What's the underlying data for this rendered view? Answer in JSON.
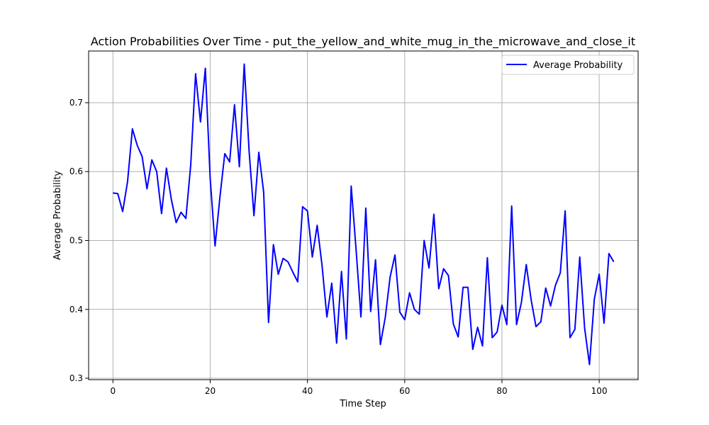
{
  "chart_data": {
    "type": "line",
    "title": "Action Probabilities Over Time - put_the_yellow_and_white_mug_in_the_microwave_and_close_it",
    "xlabel": "Time Step",
    "ylabel": "Average Probability",
    "xlim": [
      -5,
      108
    ],
    "ylim": [
      0.298,
      0.775
    ],
    "xticks": [
      0,
      20,
      40,
      60,
      80,
      100
    ],
    "yticks": [
      0.3,
      0.4,
      0.5,
      0.6,
      0.7
    ],
    "ytick_labels": [
      "0.3",
      "0.4",
      "0.5",
      "0.6",
      "0.7"
    ],
    "grid": true,
    "legend_position": "top-right",
    "series": [
      {
        "name": "Average Probability",
        "color": "#0000ff",
        "x": [
          0,
          1,
          2,
          3,
          4,
          5,
          6,
          7,
          8,
          9,
          10,
          11,
          12,
          13,
          14,
          15,
          16,
          17,
          18,
          19,
          20,
          21,
          22,
          23,
          24,
          25,
          26,
          27,
          28,
          29,
          30,
          31,
          32,
          33,
          34,
          35,
          36,
          37,
          38,
          39,
          40,
          41,
          42,
          43,
          44,
          45,
          46,
          47,
          48,
          49,
          50,
          51,
          52,
          53,
          54,
          55,
          56,
          57,
          58,
          59,
          60,
          61,
          62,
          63,
          64,
          65,
          66,
          67,
          68,
          69,
          70,
          71,
          72,
          73,
          74,
          75,
          76,
          77,
          78,
          79,
          80,
          81,
          82,
          83,
          84,
          85,
          86,
          87,
          88,
          89,
          90,
          91,
          92,
          93,
          94,
          95,
          96,
          97,
          98,
          99,
          100,
          101,
          102,
          103
        ],
        "values": [
          0.569,
          0.568,
          0.542,
          0.585,
          0.662,
          0.638,
          0.622,
          0.575,
          0.617,
          0.6,
          0.539,
          0.605,
          0.56,
          0.526,
          0.541,
          0.532,
          0.61,
          0.742,
          0.672,
          0.75,
          0.59,
          0.492,
          0.563,
          0.626,
          0.614,
          0.697,
          0.607,
          0.756,
          0.63,
          0.536,
          0.628,
          0.57,
          0.381,
          0.494,
          0.451,
          0.474,
          0.469,
          0.454,
          0.44,
          0.549,
          0.543,
          0.476,
          0.522,
          0.464,
          0.389,
          0.438,
          0.351,
          0.455,
          0.357,
          0.579,
          0.487,
          0.389,
          0.547,
          0.397,
          0.472,
          0.349,
          0.388,
          0.447,
          0.479,
          0.396,
          0.385,
          0.424,
          0.4,
          0.393,
          0.5,
          0.46,
          0.538,
          0.43,
          0.459,
          0.449,
          0.379,
          0.36,
          0.432,
          0.432,
          0.342,
          0.374,
          0.347,
          0.475,
          0.359,
          0.367,
          0.406,
          0.378,
          0.55,
          0.378,
          0.41,
          0.465,
          0.414,
          0.375,
          0.382,
          0.431,
          0.405,
          0.435,
          0.453,
          0.543,
          0.359,
          0.371,
          0.476,
          0.373,
          0.32,
          0.415,
          0.451,
          0.38,
          0.481,
          0.469
        ]
      }
    ]
  }
}
